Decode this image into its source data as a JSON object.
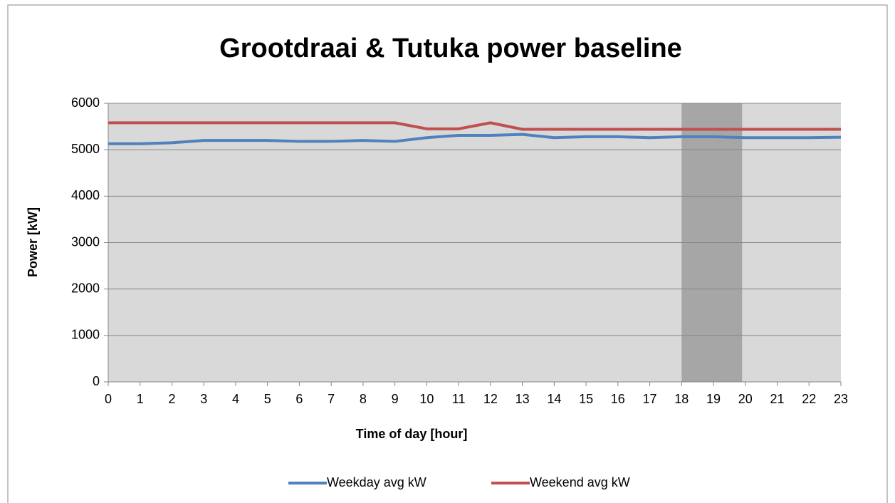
{
  "chart_data": {
    "type": "line",
    "title": "Grootdraai & Tutuka power baseline",
    "x_label": "Time of day [hour]",
    "y_label": "Power [kW]",
    "x": [
      0,
      1,
      2,
      3,
      4,
      5,
      6,
      7,
      8,
      9,
      10,
      11,
      12,
      13,
      14,
      15,
      16,
      17,
      18,
      19,
      20,
      21,
      22,
      23
    ],
    "series": [
      {
        "name": "Weekday avg kW",
        "color": "#4f81bd",
        "values": [
          5130,
          5130,
          5150,
          5200,
          5200,
          5200,
          5180,
          5180,
          5200,
          5180,
          5260,
          5310,
          5310,
          5330,
          5260,
          5280,
          5280,
          5260,
          5280,
          5280,
          5260,
          5260,
          5260,
          5270
        ]
      },
      {
        "name": "Weekend avg kW",
        "color": "#c0504d",
        "values": [
          5580,
          5580,
          5580,
          5580,
          5580,
          5580,
          5580,
          5580,
          5580,
          5580,
          5450,
          5450,
          5580,
          5440,
          5440,
          5440,
          5440,
          5440,
          5440,
          5440,
          5440,
          5440,
          5440,
          5440
        ]
      }
    ],
    "highlight_range": [
      18,
      19.9
    ],
    "xlim": [
      0,
      23
    ],
    "xticks": [
      0,
      1,
      2,
      3,
      4,
      5,
      6,
      7,
      8,
      9,
      10,
      11,
      12,
      13,
      14,
      15,
      16,
      17,
      18,
      19,
      20,
      21,
      22,
      23
    ],
    "ylim": [
      0,
      6000
    ],
    "yticks": [
      0,
      1000,
      2000,
      3000,
      4000,
      5000,
      6000
    ],
    "grid": true,
    "legend": "bottom"
  }
}
